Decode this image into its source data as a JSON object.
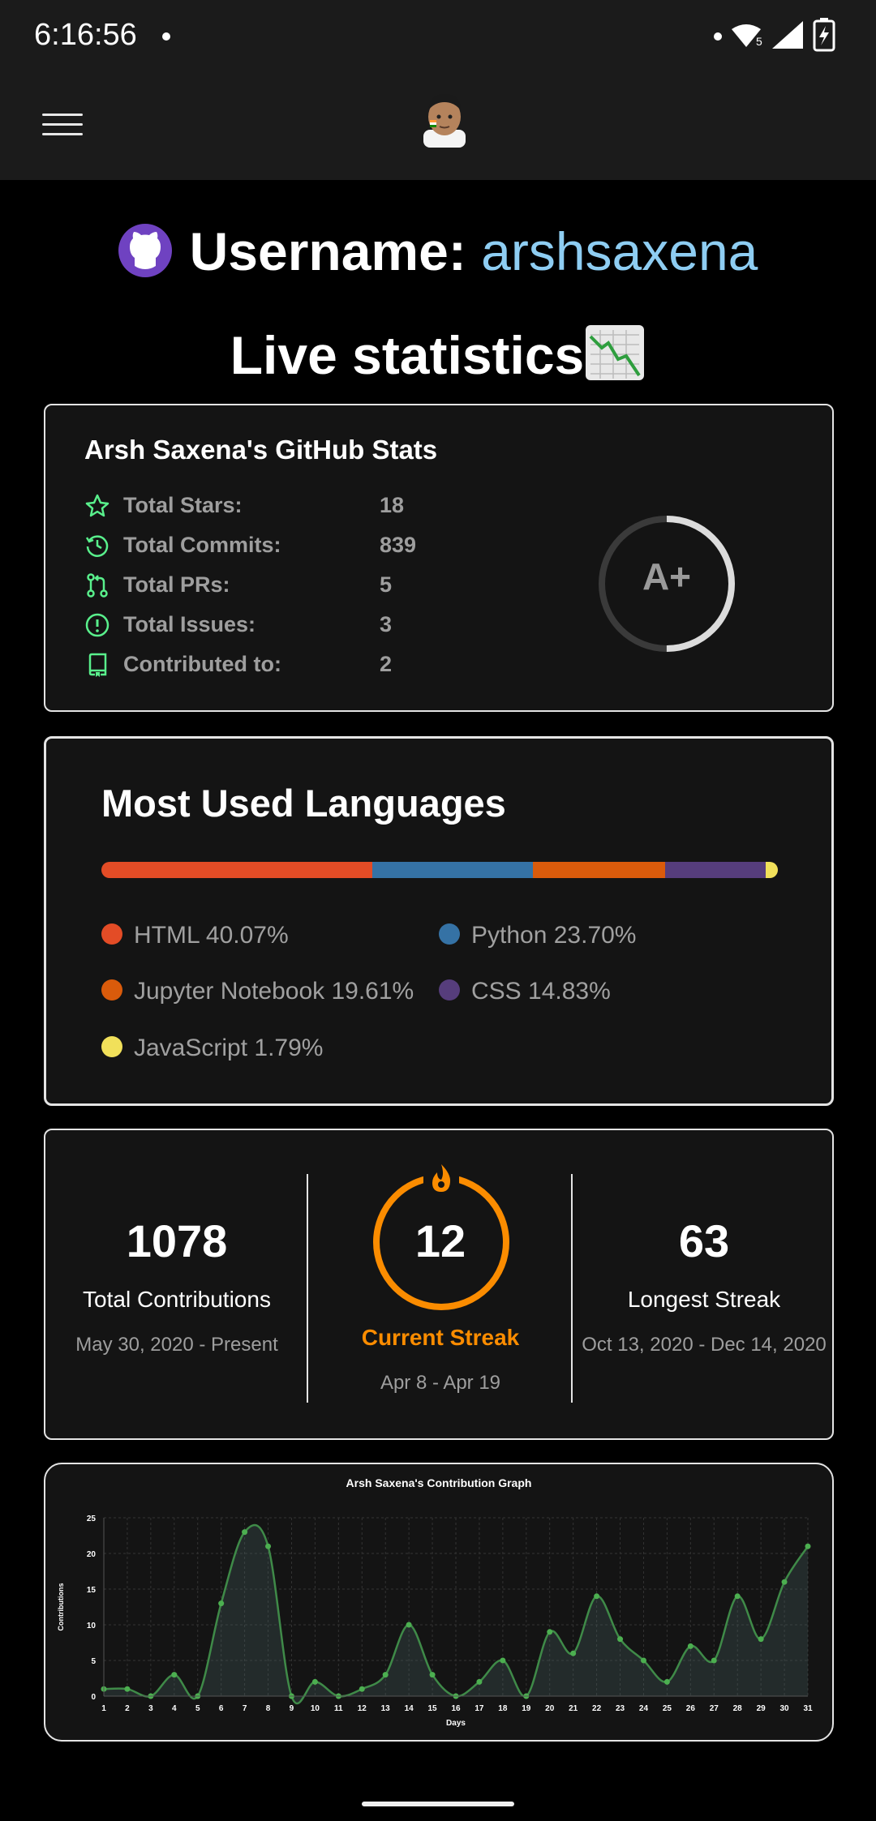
{
  "status": {
    "time": "6:16:56"
  },
  "header": {
    "username_prefix": "Username: ",
    "username": "arshsaxena",
    "live_title": "Live statistics"
  },
  "stats_card": {
    "title": "Arsh Saxena's GitHub Stats",
    "rows": [
      {
        "label": "Total Stars:",
        "value": "18",
        "icon": "star-icon"
      },
      {
        "label": "Total Commits:",
        "value": "839",
        "icon": "history-icon"
      },
      {
        "label": "Total PRs:",
        "value": "5",
        "icon": "pull-request-icon"
      },
      {
        "label": "Total Issues:",
        "value": "3",
        "icon": "issue-icon"
      },
      {
        "label": "Contributed to:",
        "value": "2",
        "icon": "repo-icon"
      }
    ],
    "rank": "A+",
    "rank_progress": 0.5,
    "accent": "#59f08c"
  },
  "languages_card": {
    "title": "Most Used Languages",
    "languages": [
      {
        "label": "HTML 40.07%",
        "percent": 40.07,
        "color": "#e34c26"
      },
      {
        "label": "Python 23.70%",
        "percent": 23.7,
        "color": "#3572A5"
      },
      {
        "label": "Jupyter Notebook 19.61%",
        "percent": 19.61,
        "color": "#DA5B0B"
      },
      {
        "label": "CSS 14.83%",
        "percent": 14.83,
        "color": "#563d7c"
      },
      {
        "label": "JavaScript 1.79%",
        "percent": 1.79,
        "color": "#f1e05a"
      }
    ]
  },
  "streak_card": {
    "total": {
      "number": "1078",
      "label": "Total Contributions",
      "range": "May 30, 2020 - Present"
    },
    "current": {
      "number": "12",
      "label": "Current Streak",
      "range": "Apr 8 - Apr 19"
    },
    "longest": {
      "number": "63",
      "label": "Longest Streak",
      "range": "Oct 13, 2020 - Dec 14, 2020"
    },
    "accent": "#fb8c00"
  },
  "chart_data": {
    "type": "area",
    "title": "Arsh Saxena's Contribution Graph",
    "xlabel": "Days",
    "ylabel": "Contributions",
    "x": [
      1,
      2,
      3,
      4,
      5,
      6,
      7,
      8,
      9,
      10,
      11,
      12,
      13,
      14,
      15,
      16,
      17,
      18,
      19,
      20,
      21,
      22,
      23,
      24,
      25,
      26,
      27,
      28,
      29,
      30,
      31
    ],
    "values": [
      1,
      1,
      0,
      3,
      0,
      13,
      23,
      21,
      0,
      2,
      0,
      1,
      3,
      10,
      3,
      0,
      2,
      5,
      0,
      9,
      6,
      14,
      8,
      5,
      2,
      7,
      5,
      14,
      8,
      16,
      21
    ],
    "yticks": [
      0,
      5,
      10,
      15,
      20,
      25
    ],
    "ylim": [
      0,
      25
    ],
    "grid": true,
    "line_color": "#4caf50"
  }
}
